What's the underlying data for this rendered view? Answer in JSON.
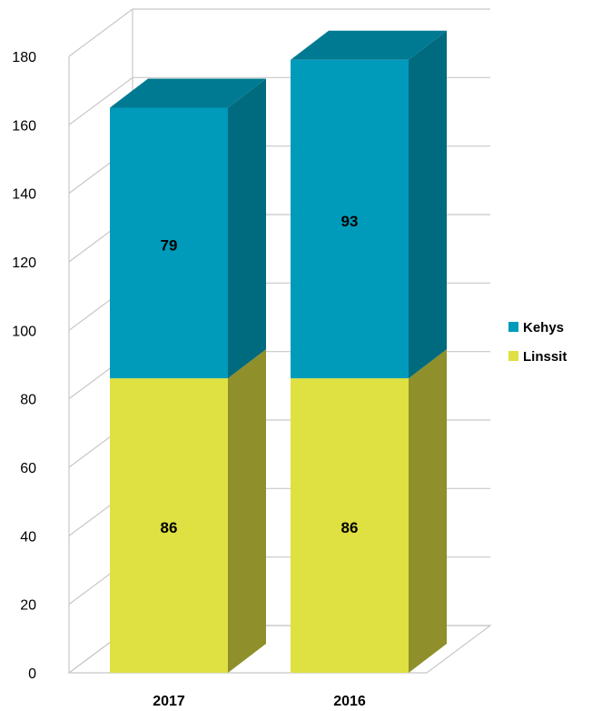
{
  "chart_data": {
    "type": "bar",
    "stacked": true,
    "three_d": true,
    "categories": [
      "2017",
      "2016"
    ],
    "series": [
      {
        "name": "Linssit",
        "values": [
          86,
          86
        ],
        "color": "#dfe042",
        "side_color": "#8f8f2b",
        "top_color": "#c9ca3b"
      },
      {
        "name": "Kehys",
        "values": [
          79,
          93
        ],
        "color": "#009bbb",
        "side_color": "#006a7e",
        "top_color": "#007a92"
      }
    ],
    "ylim": [
      0,
      180
    ],
    "yticks": [
      "0",
      "20",
      "40",
      "60",
      "80",
      "100",
      "120",
      "140",
      "160",
      "180"
    ],
    "ytick_values": [
      0,
      20,
      40,
      60,
      80,
      100,
      120,
      140,
      160,
      180
    ],
    "grid": true,
    "legend_position": "right",
    "legend_order": [
      "Kehys",
      "Linssit"
    ],
    "title": "",
    "xlabel": "",
    "ylabel": ""
  }
}
